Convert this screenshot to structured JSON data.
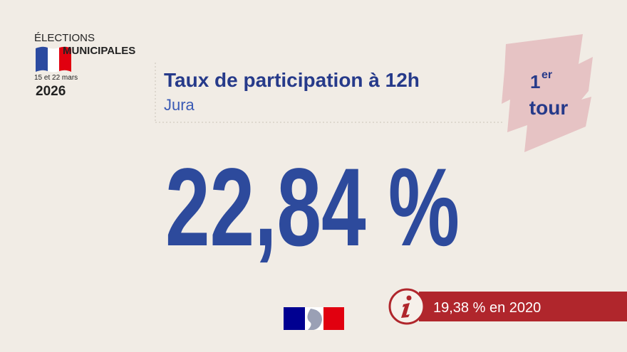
{
  "header": {
    "line1": "ÉLECTIONS",
    "line2": "MUNICIPALES",
    "dates": "15 et 22 mars",
    "year": "2026"
  },
  "title": "Taux de participation à 12h",
  "subtitle": "Jura",
  "round": {
    "number": "1",
    "suffix": "er",
    "word": "tour"
  },
  "main_value": "22,84 %",
  "comparison": "19,38 % en 2020"
}
